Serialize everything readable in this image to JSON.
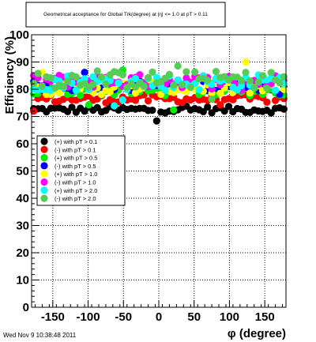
{
  "chart_data": {
    "type": "scatter",
    "title": "Geometrical acceptance for Global Trk(degree) at |η| <= 1.0 at pT > 0.11",
    "xlabel": "φ (degree)",
    "ylabel": "Efficiency (%)",
    "xlim": [
      -180,
      180
    ],
    "ylim": [
      0,
      100
    ],
    "x_ticks": [
      "-150",
      "-100",
      "-50",
      "0",
      "50",
      "100",
      "150"
    ],
    "y_ticks": [
      "0",
      "10",
      "20",
      "30",
      "40",
      "50",
      "60",
      "70",
      "80",
      "90",
      "100"
    ],
    "grid": true,
    "legend_placement": "left-middle",
    "timestamp": "Wed Nov  9 10:38:48 2011",
    "series": [
      {
        "name": "(+) with pT > 0.1",
        "color": "#000000",
        "base": 72.5,
        "spread": 1.2
      },
      {
        "name": "(-) with pT > 0.1",
        "color": "#ff0000",
        "base": 76.5,
        "spread": 1.5
      },
      {
        "name": "(+) with pT > 0.5",
        "color": "#00ee00",
        "base": 79.5,
        "spread": 2.0
      },
      {
        "name": "(-) with pT > 0.5",
        "color": "#0000ff",
        "base": 81.5,
        "spread": 2.0
      },
      {
        "name": "(+) with pT > 1.0",
        "color": "#ffff00",
        "base": 80.5,
        "spread": 2.5
      },
      {
        "name": "(-) with pT > 1.0",
        "color": "#ff00ff",
        "base": 83.0,
        "spread": 2.5
      },
      {
        "name": "(+) with pT > 2.0",
        "color": "#00ffff",
        "base": 82.5,
        "spread": 3.0
      },
      {
        "name": "(-) with pT > 2.0",
        "color": "#55cc55",
        "base": 83.5,
        "spread": 3.2
      }
    ]
  }
}
